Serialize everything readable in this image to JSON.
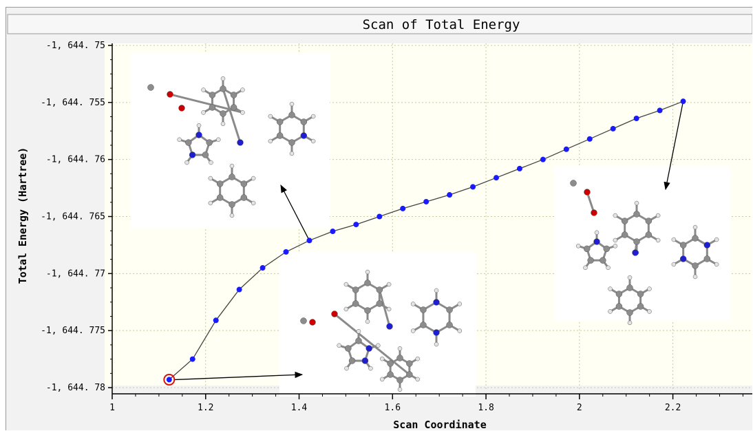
{
  "chart_data": {
    "type": "line",
    "title": "Scan of Total Energy",
    "xlabel": "Scan Coordinate",
    "ylabel": "Total Energy (Hartree)",
    "xlim": [
      1.0,
      2.37
    ],
    "ylim": [
      -1644.7803,
      -1644.7497
    ],
    "x_ticks": [
      1,
      1.2,
      1.4,
      1.6,
      1.8,
      2,
      2.2
    ],
    "x_tick_labels": [
      "1",
      "1.2",
      "1.4",
      "1.6",
      "1.8",
      "2",
      "2.2"
    ],
    "y_ticks": [
      -1644.75,
      -1644.755,
      -1644.76,
      -1644.765,
      -1644.77,
      -1644.775,
      -1644.78
    ],
    "y_tick_labels": [
      "-1, 644. 75",
      "-1, 644. 755",
      "-1, 644. 76",
      "-1, 644. 765",
      "-1, 644. 77",
      "-1, 644. 775",
      "-1, 644. 78"
    ],
    "grid": true,
    "series": [
      {
        "color": "#1a1aff",
        "x": [
          1.122,
          1.172,
          1.222,
          1.272,
          1.322,
          1.372,
          1.422,
          1.472,
          1.522,
          1.572,
          1.622,
          1.672,
          1.722,
          1.772,
          1.822,
          1.872,
          1.922,
          1.972,
          2.022,
          2.072,
          2.122,
          2.172,
          2.222
        ],
        "y": [
          -1644.7793,
          -1644.7775,
          -1644.7741,
          -1644.7714,
          -1644.7695,
          -1644.7681,
          -1644.7671,
          -1644.7663,
          -1644.7657,
          -1644.765,
          -1644.7643,
          -1644.7637,
          -1644.7631,
          -1644.7624,
          -1644.7616,
          -1644.7608,
          -1644.76,
          -1644.7591,
          -1644.7582,
          -1644.7573,
          -1644.7564,
          -1644.7557,
          -1644.7549
        ]
      }
    ],
    "highlighted_point_index": 0,
    "highlight_color": "#e01010",
    "annotations": [
      {
        "kind": "molecule-image",
        "placement": "upper-left",
        "arrow_from_point_index": 6
      },
      {
        "kind": "molecule-image",
        "placement": "lower-middle",
        "arrow_from_point_index": 0
      },
      {
        "kind": "molecule-image",
        "placement": "right",
        "arrow_from_point_index": 22
      }
    ],
    "colors": {
      "plot_background": "#fffff3",
      "frame_background": "#f2f2f2",
      "grid": "#c8c8a0",
      "line": "#444444",
      "arrow": "#000000"
    },
    "atom_colors": {
      "carbon": "#8c8c8c",
      "hydrogen": "#e4e4e4",
      "nitrogen": "#1f1fd0",
      "oxygen": "#cc0000"
    }
  }
}
